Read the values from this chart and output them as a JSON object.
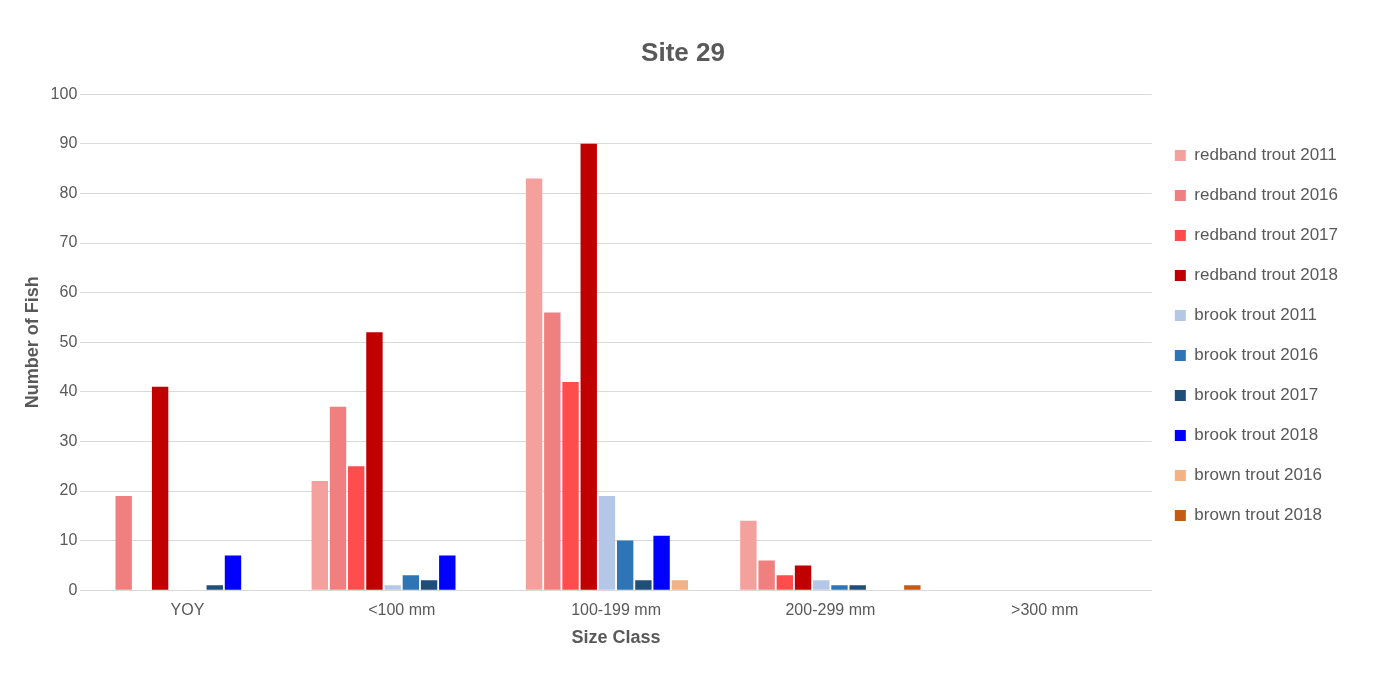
{
  "chart_data": {
    "type": "bar",
    "title": "Site 29",
    "xlabel": "Size Class",
    "ylabel": "Number of Fish",
    "categories": [
      "YOY",
      "<100 mm",
      "100-199 mm",
      "200-299 mm",
      ">300 mm"
    ],
    "series": [
      {
        "name": "redband trout 2011",
        "color": "#f4a09c",
        "values": [
          0,
          22,
          83,
          14,
          0
        ]
      },
      {
        "name": "redband trout 2016",
        "color": "#f08080",
        "values": [
          19,
          37,
          56,
          6,
          0
        ]
      },
      {
        "name": "redband trout 2017",
        "color": "#ff4d4d",
        "values": [
          0,
          25,
          42,
          3,
          0
        ]
      },
      {
        "name": "redband trout 2018",
        "color": "#c00000",
        "values": [
          41,
          52,
          90,
          5,
          0
        ]
      },
      {
        "name": "brook trout 2011",
        "color": "#b4c7e7",
        "values": [
          0,
          1,
          19,
          2,
          0
        ]
      },
      {
        "name": "brook trout 2016",
        "color": "#2e75b6",
        "values": [
          0,
          3,
          10,
          1,
          0
        ]
      },
      {
        "name": "brook trout 2017",
        "color": "#1f4e79",
        "values": [
          1,
          2,
          2,
          1,
          0
        ]
      },
      {
        "name": "brook trout 2018",
        "color": "#0000ff",
        "values": [
          7,
          7,
          11,
          0,
          0
        ]
      },
      {
        "name": "brown trout 2016",
        "color": "#f4b183",
        "values": [
          0,
          0,
          2,
          0,
          0
        ]
      },
      {
        "name": "brown trout 2018",
        "color": "#c55a11",
        "values": [
          0,
          0,
          0,
          1,
          0
        ]
      }
    ],
    "ylim": [
      0,
      100
    ],
    "yticks": [
      0,
      10,
      20,
      30,
      40,
      50,
      60,
      70,
      80,
      90,
      100
    ],
    "grid": "y",
    "legend": "right"
  }
}
